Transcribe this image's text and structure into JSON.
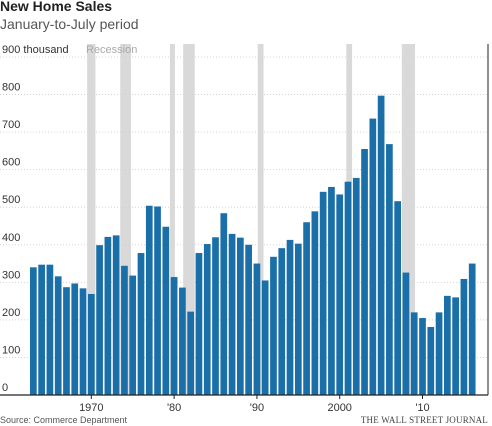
{
  "chart_data": {
    "type": "bar",
    "title": "New Home Sales",
    "subtitle": "January-to-July period",
    "ylabel": "",
    "xlabel": "",
    "ylim": [
      0,
      900
    ],
    "yticks": [
      0,
      100,
      200,
      300,
      400,
      500,
      600,
      700,
      800,
      900
    ],
    "ytick_labels": [
      "0",
      "100",
      "200",
      "300",
      "400",
      "500",
      "600",
      "700",
      "800",
      "900 thousand"
    ],
    "xticks": [
      1970,
      1980,
      1990,
      2000,
      2010
    ],
    "xtick_labels": [
      "1970",
      "'80",
      "'90",
      "2000",
      "'10"
    ],
    "grid": true,
    "bar_color": "#1a6fa8",
    "recession_color": "#d9d9d9",
    "recession_label": "Recession",
    "recessions": [
      [
        1969.9,
        1970.9
      ],
      [
        1973.9,
        1975.2
      ],
      [
        1979.9,
        1980.5
      ],
      [
        1981.5,
        1982.9
      ],
      [
        1990.5,
        1991.2
      ],
      [
        2001.2,
        2001.9
      ],
      [
        2007.9,
        2009.5
      ]
    ],
    "x": [
      1963,
      1964,
      1965,
      1966,
      1967,
      1968,
      1969,
      1970,
      1971,
      1972,
      1973,
      1974,
      1975,
      1976,
      1977,
      1978,
      1979,
      1980,
      1981,
      1982,
      1983,
      1984,
      1985,
      1986,
      1987,
      1988,
      1989,
      1990,
      1991,
      1992,
      1993,
      1994,
      1995,
      1996,
      1997,
      1998,
      1999,
      2000,
      2001,
      2002,
      2003,
      2004,
      2005,
      2006,
      2007,
      2008,
      2009,
      2010,
      2011,
      2012,
      2013,
      2014,
      2015,
      2016
    ],
    "values": [
      340,
      347,
      347,
      316,
      287,
      297,
      284,
      269,
      399,
      421,
      425,
      344,
      318,
      378,
      504,
      502,
      448,
      314,
      286,
      222,
      378,
      402,
      420,
      484,
      429,
      419,
      400,
      350,
      305,
      368,
      391,
      413,
      403,
      460,
      489,
      541,
      554,
      534,
      568,
      578,
      655,
      736,
      797,
      668,
      516,
      326,
      220,
      205,
      181,
      220,
      264,
      260,
      309,
      350
    ],
    "source": "Source: Commerce Department",
    "credit": "THE WALL STREET JOURNAL"
  }
}
